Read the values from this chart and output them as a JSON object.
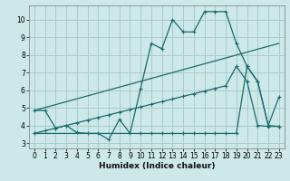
{
  "xlabel": "Humidex (Indice chaleur)",
  "bg_color": "#cce8e8",
  "grid_color": "#aacccc",
  "line_color": "#1a6b6b",
  "xlim": [
    -0.5,
    23.5
  ],
  "ylim": [
    2.7,
    10.8
  ],
  "yticks": [
    3,
    4,
    5,
    6,
    7,
    8,
    9,
    10
  ],
  "xticks": [
    0,
    1,
    2,
    3,
    4,
    5,
    6,
    7,
    8,
    9,
    10,
    11,
    12,
    13,
    14,
    15,
    16,
    17,
    18,
    19,
    20,
    21,
    22,
    23
  ],
  "line1_x": [
    0,
    1,
    2,
    3,
    4,
    5,
    6,
    7,
    8,
    9,
    10,
    11,
    12,
    13,
    14,
    15,
    16,
    17,
    18,
    19,
    20,
    21,
    22,
    23
  ],
  "line1_y": [
    4.85,
    4.85,
    3.85,
    4.0,
    3.6,
    3.55,
    3.55,
    3.2,
    4.35,
    3.55,
    6.1,
    8.65,
    8.35,
    10.0,
    9.3,
    9.3,
    10.45,
    10.45,
    10.45,
    8.65,
    7.35,
    6.5,
    4.0,
    5.6
  ],
  "line2_x": [
    0,
    23
  ],
  "line2_y": [
    4.85,
    8.65
  ],
  "line3_x": [
    0,
    1,
    2,
    3,
    4,
    5,
    6,
    7,
    8,
    9,
    10,
    11,
    12,
    13,
    14,
    15,
    16,
    17,
    18,
    19,
    20,
    21,
    22,
    23
  ],
  "line3_y": [
    3.55,
    3.7,
    3.85,
    4.0,
    4.15,
    4.3,
    4.45,
    4.6,
    4.75,
    4.9,
    5.05,
    5.2,
    5.35,
    5.5,
    5.65,
    5.8,
    5.95,
    6.1,
    6.25,
    7.35,
    6.5,
    4.0,
    3.95,
    3.95
  ],
  "line4_x": [
    0,
    10,
    11,
    12,
    13,
    14,
    15,
    16,
    17,
    18,
    19,
    20,
    21,
    22,
    23
  ],
  "line4_y": [
    3.55,
    3.55,
    3.55,
    3.55,
    3.55,
    3.55,
    3.55,
    3.55,
    3.55,
    3.55,
    3.55,
    7.35,
    6.5,
    4.0,
    3.95
  ],
  "markersize": 3,
  "linewidth": 0.9
}
